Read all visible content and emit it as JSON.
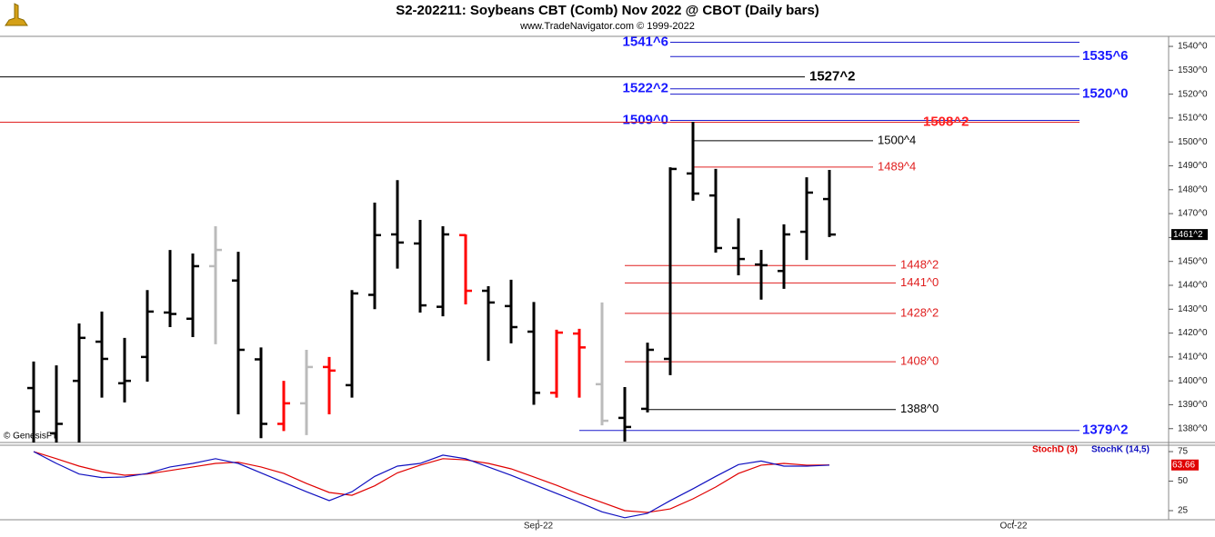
{
  "chart_data": [
    {
      "type": "ohlc",
      "title": "S2-202211:  Soybeans CBT (Comb) Nov 2022 @ CBOT  (Daily bars)",
      "subtitle": "www.TradeNavigator.com © 1999-2022",
      "watermark": "© GenesisFT",
      "xlim": [
        -1.48,
        49.92
      ],
      "ylim": [
        1374.2,
        1544.2
      ],
      "yticks": [
        {
          "value": 1380,
          "label": "1380^0"
        },
        {
          "value": 1390,
          "label": "1390^0"
        },
        {
          "value": 1400,
          "label": "1400^0"
        },
        {
          "value": 1410,
          "label": "1410^0"
        },
        {
          "value": 1420,
          "label": "1420^0"
        },
        {
          "value": 1430,
          "label": "1430^0"
        },
        {
          "value": 1440,
          "label": "1440^0"
        },
        {
          "value": 1450,
          "label": "1450^0"
        },
        {
          "value": 1460,
          "label": "1460^0"
        },
        {
          "value": 1470,
          "label": "1470^0"
        },
        {
          "value": 1480,
          "label": "1480^0"
        },
        {
          "value": 1490,
          "label": "1490^0"
        },
        {
          "value": 1500,
          "label": "1500^0"
        },
        {
          "value": 1510,
          "label": "1510^0"
        },
        {
          "value": 1520,
          "label": "1520^0"
        },
        {
          "value": 1530,
          "label": "1530^0"
        },
        {
          "value": 1540,
          "label": "1540^0"
        }
      ],
      "open": [
        1397,
        1378,
        1400,
        1416.4,
        1399,
        1410,
        1428.6,
        1426,
        1448,
        1442,
        1409,
        1382,
        1390.6,
        1405.8,
        1398.2,
        1436,
        1461.3,
        1457.5,
        1431,
        1461,
        1437.7,
        1431.3,
        1420.6,
        1395,
        1419.8,
        1398.6,
        1384.5,
        1388.3,
        1409.2,
        1486.8,
        1477.6,
        1455.6,
        1448.7,
        1446,
        1462.4,
        1476.1
      ],
      "high": [
        1408.1,
        1406.5,
        1424,
        1429,
        1418,
        1438,
        1454.8,
        1453.3,
        1464.7,
        1454,
        1414,
        1400,
        1413,
        1410,
        1438,
        1474.6,
        1484,
        1467.4,
        1464.7,
        1461.3,
        1439.6,
        1442.3,
        1433,
        1421.4,
        1421.8,
        1432.8,
        1397.4,
        1416,
        1489.4,
        1508.4,
        1488.7,
        1468,
        1454.8,
        1465.5,
        1485.2,
        1488.3
      ],
      "low": [
        1374.2,
        1374.2,
        1374.2,
        1393,
        1391,
        1399.7,
        1422.5,
        1418.3,
        1415.3,
        1386,
        1376,
        1379,
        1377.3,
        1386,
        1393,
        1430,
        1447,
        1428.6,
        1427,
        1432,
        1408.4,
        1415.7,
        1390,
        1393,
        1393,
        1381.4,
        1374.6,
        1386.8,
        1402.4,
        1475.4,
        1453.7,
        1444.2,
        1434,
        1438.5,
        1450.6,
        1460.2
      ],
      "close": [
        1387.2,
        1382,
        1418,
        1409.2,
        1400,
        1429,
        1428,
        1448,
        1454.8,
        1413,
        1382,
        1390.6,
        1405.8,
        1404.3,
        1436.6,
        1461,
        1457.9,
        1431.6,
        1461.3,
        1437.7,
        1432.8,
        1422.5,
        1395,
        1420.2,
        1414,
        1383.3,
        1380.7,
        1413,
        1488.7,
        1478.4,
        1455.6,
        1451,
        1448.4,
        1461.3,
        1478.8,
        1461.25
      ],
      "colors": [
        "#000000",
        "#000000",
        "#000000",
        "#000000",
        "#000000",
        "#000000",
        "#000000",
        "#000000",
        "#bbbbbb",
        "#000000",
        "#000000",
        "#ff0000",
        "#bbbbbb",
        "#ff0000",
        "#000000",
        "#000000",
        "#000000",
        "#000000",
        "#000000",
        "#ff0000",
        "#000000",
        "#000000",
        "#000000",
        "#ff0000",
        "#ff0000",
        "#bbbbbb",
        "#000000",
        "#000000",
        "#000000",
        "#000000",
        "#000000",
        "#000000",
        "#000000",
        "#000000",
        "#000000",
        "#000000"
      ],
      "current_price": {
        "value": 1461.25,
        "label": "1461^2"
      },
      "levels": [
        {
          "value": 1541.75,
          "label": "1541^6",
          "color": "#1a1acc",
          "label_color": "#1a1aff",
          "bold": true
        },
        {
          "value": 1535.75,
          "label": "1535^6",
          "color": "#1a1acc",
          "label_color": "#1a1aff",
          "bold": true
        },
        {
          "value": 1527.25,
          "label": "1527^2",
          "color": "#000000",
          "label_color": "#000000",
          "bold": true
        },
        {
          "value": 1522.25,
          "label": "1522^2",
          "color": "#1a1acc",
          "label_color": "#1a1aff",
          "bold": true
        },
        {
          "value": 1520,
          "label": "1520^0",
          "color": "#1a1acc",
          "label_color": "#1a1aff",
          "bold": true
        },
        {
          "value": 1509,
          "label": "1509^0",
          "color": "#1a1acc",
          "label_color": "#1a1aff",
          "bold": true
        },
        {
          "value": 1508.25,
          "label": "1508^2",
          "color": "#e02020",
          "label_color": "#ff2020",
          "bold": true
        },
        {
          "value": 1500.5,
          "label": "1500^4",
          "color": "#000000",
          "label_color": "#000000",
          "bold": false
        },
        {
          "value": 1489.5,
          "label": "1489^4",
          "color": "#e02020",
          "label_color": "#e02020",
          "bold": false
        },
        {
          "value": 1448.25,
          "label": "1448^2",
          "color": "#e02020",
          "label_color": "#e02020",
          "bold": false
        },
        {
          "value": 1441,
          "label": "1441^0",
          "color": "#e02020",
          "label_color": "#e02020",
          "bold": false
        },
        {
          "value": 1428.25,
          "label": "1428^2",
          "color": "#e02020",
          "label_color": "#e02020",
          "bold": false
        },
        {
          "value": 1408,
          "label": "1408^0",
          "color": "#e02020",
          "label_color": "#e02020",
          "bold": false
        },
        {
          "value": 1388,
          "label": "1388^0",
          "color": "#000000",
          "label_color": "#000000",
          "bold": false
        },
        {
          "value": 1379.25,
          "label": "1379^2",
          "color": "#1a1acc",
          "label_color": "#1a1aff",
          "bold": true
        }
      ]
    },
    {
      "type": "line",
      "xlim": [
        -1.48,
        49.92
      ],
      "ylim": [
        17.3,
        80.4
      ],
      "yticks": [
        25,
        50,
        75
      ],
      "xticks": [
        {
          "value": 22.2,
          "label": "Sep-22"
        },
        {
          "value": 43.1,
          "label": "Oct-22"
        }
      ],
      "current_value": {
        "value": 63.66,
        "label": "63.66"
      },
      "series": [
        {
          "name": "StochD (3)",
          "color": "#e00000",
          "values": [
            75,
            69,
            62.7,
            58,
            55,
            56,
            59,
            62,
            65,
            66,
            62,
            56.5,
            48,
            40.4,
            38,
            46,
            57,
            63.5,
            69,
            68,
            65,
            60.4,
            53.5,
            46.5,
            38.8,
            32,
            25,
            23.5,
            26.5,
            35,
            45,
            56.5,
            63.5,
            65,
            63.5,
            63.66
          ]
        },
        {
          "name": "StochK (14,5)",
          "color": "#1010c0",
          "values": [
            75,
            65,
            56,
            53,
            53.5,
            56.5,
            62,
            65,
            69,
            65,
            57,
            49,
            41,
            33.5,
            41,
            54,
            62.7,
            65,
            72,
            69,
            62,
            55,
            47.3,
            39.6,
            32,
            24,
            19,
            22.7,
            33.5,
            43.5,
            54,
            64,
            67,
            62.7,
            62.7,
            63.5
          ]
        }
      ]
    }
  ]
}
